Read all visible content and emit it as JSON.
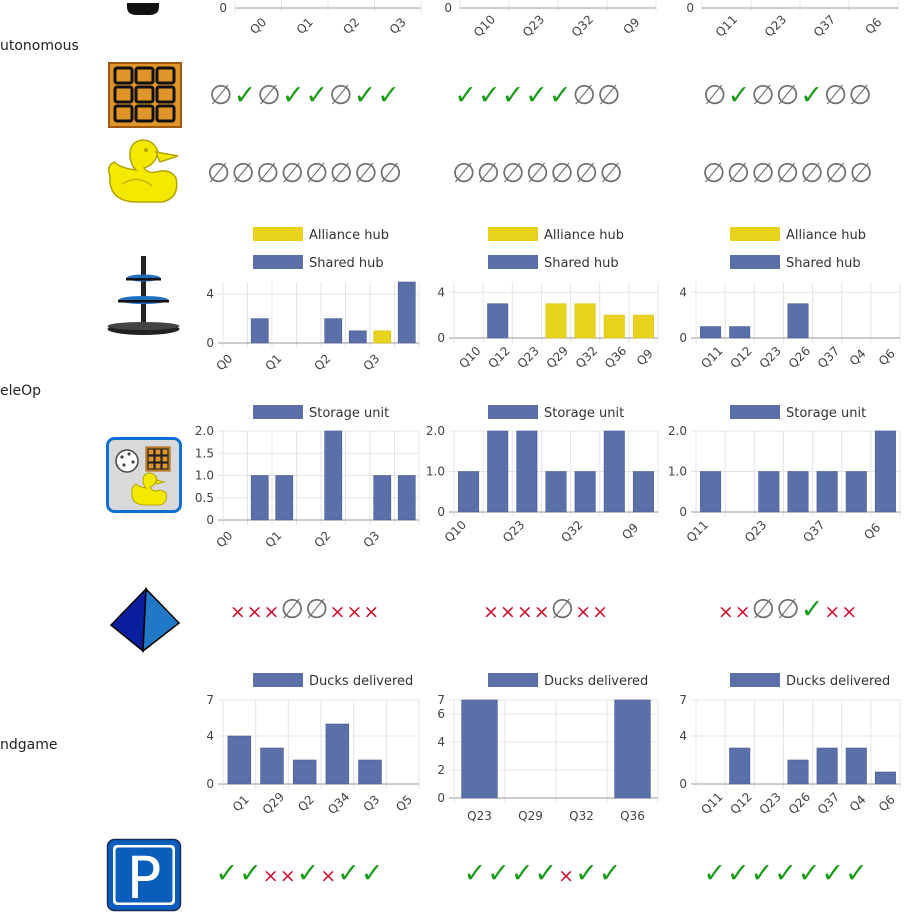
{
  "sections": {
    "autonomous": "utonomous",
    "teleop": "eleOp",
    "endgame": "ndgame"
  },
  "icons": {
    "top_partial": "object-icon",
    "waffle": "waffle-icon",
    "duck": "duck-icon",
    "shipping_hub": "shipping-hub-icon",
    "storage_unit": "storage-unit-icon",
    "pyramid": "capping-element-icon",
    "parking": "parking-icon"
  },
  "colors": {
    "series_blue": "#5b6fa8",
    "alliance_yellow": "#e8d21d",
    "ok_green": "#1a9c1a",
    "fail_red": "#c8102e",
    "null_grey": "#6e6e6e"
  },
  "symbol_rows": {
    "auto_waffle": [
      "∅✓∅✓✓∅✓✓",
      "✓✓✓✓✓∅∅",
      "∅✓∅∅✓∅∅"
    ],
    "auto_duck": [
      "∅∅∅∅∅∅∅∅",
      "∅∅∅∅∅∅∅",
      "∅∅∅∅∅∅∅"
    ],
    "capping": [
      "×××∅∅×××",
      "××××∅××",
      "××∅∅✓××"
    ],
    "parking": [
      "✓✓××✓×✓✓",
      "✓✓✓✓×✓✓",
      "✓✓✓✓✓✓✓"
    ]
  },
  "chart_data": [
    {
      "id": "auto-top-1",
      "type": "bar",
      "xlabel": "",
      "ylabel": "",
      "x_tick_labels": [
        "Q0",
        "Q1",
        "Q2",
        "Q3"
      ],
      "y_tick_labels": [
        "0"
      ]
    },
    {
      "id": "auto-top-2",
      "type": "bar",
      "xlabel": "",
      "ylabel": "",
      "x_tick_labels": [
        "Q10",
        "Q23",
        "Q32",
        "Q9"
      ],
      "y_tick_labels": [
        "0"
      ]
    },
    {
      "id": "auto-top-3",
      "type": "bar",
      "xlabel": "",
      "ylabel": "",
      "x_tick_labels": [
        "Q11",
        "Q23",
        "Q37",
        "Q6"
      ],
      "y_tick_labels": [
        "0"
      ]
    },
    {
      "id": "hub-1",
      "type": "bar",
      "ylim": [
        0,
        5
      ],
      "y_ticks": [
        0,
        4
      ],
      "tick_rot": 45,
      "tick_mode": "sparse",
      "categories": [
        "Q0",
        "",
        "Q1",
        "",
        "Q2",
        "",
        "Q3",
        ""
      ],
      "series": [
        {
          "name": "Alliance hub",
          "color": "#e8d21d",
          "values": [
            0,
            0,
            0,
            0,
            0,
            0,
            1,
            0
          ]
        },
        {
          "name": "Shared hub",
          "color": "#5b6fa8",
          "values": [
            0,
            2,
            0,
            0,
            2,
            1,
            0,
            5
          ]
        }
      ],
      "legend_position": "top"
    },
    {
      "id": "hub-2",
      "type": "bar",
      "ylim": [
        0,
        4.9
      ],
      "y_ticks": [
        0,
        4
      ],
      "tick_rot": 45,
      "categories": [
        "Q10",
        "Q12",
        "Q23",
        "Q29",
        "Q32",
        "Q36",
        "Q9"
      ],
      "series": [
        {
          "name": "Alliance hub",
          "color": "#e8d21d",
          "values": [
            0,
            0,
            0,
            3,
            3,
            2,
            2
          ]
        },
        {
          "name": "Shared hub",
          "color": "#5b6fa8",
          "values": [
            0,
            3,
            0,
            0,
            0,
            0,
            0
          ]
        }
      ],
      "legend_position": "top"
    },
    {
      "id": "hub-3",
      "type": "bar",
      "ylim": [
        0,
        4.9
      ],
      "y_ticks": [
        0,
        4
      ],
      "tick_rot": 45,
      "categories": [
        "Q11",
        "Q12",
        "Q23",
        "Q26",
        "Q37",
        "Q4",
        "Q6"
      ],
      "series": [
        {
          "name": "Alliance hub",
          "color": "#e8d21d",
          "values": [
            0,
            0,
            0,
            0,
            0,
            0,
            0
          ]
        },
        {
          "name": "Shared hub",
          "color": "#5b6fa8",
          "values": [
            1,
            1,
            0,
            3,
            0,
            0,
            0
          ]
        }
      ],
      "legend_position": "top"
    },
    {
      "id": "storage-1",
      "type": "bar",
      "ylim": [
        0,
        2
      ],
      "y_ticks": [
        0,
        0.5,
        1,
        1.5,
        2
      ],
      "y_tick_labels": [
        "0",
        "0.5",
        "1.0",
        "1.5",
        "2.0"
      ],
      "tick_rot": 45,
      "tick_mode": "sparse",
      "categories": [
        "Q0",
        "",
        "Q1",
        "",
        "Q2",
        "",
        "Q3",
        ""
      ],
      "series": [
        {
          "name": "Storage unit",
          "color": "#5b6fa8",
          "values": [
            0,
            1,
            1,
            0,
            2,
            0,
            1,
            1
          ]
        }
      ],
      "legend_position": "top"
    },
    {
      "id": "storage-2",
      "type": "bar",
      "ylim": [
        0,
        2
      ],
      "y_ticks": [
        0,
        1,
        2
      ],
      "y_tick_labels": [
        "0",
        "1.0",
        "2.0"
      ],
      "tick_rot": 45,
      "tick_mode": "sparse",
      "categories": [
        "Q10",
        "",
        "Q23",
        "",
        "Q32",
        "",
        "Q9"
      ],
      "series": [
        {
          "name": "Storage unit",
          "color": "#5b6fa8",
          "values": [
            1,
            2,
            2,
            1,
            1,
            2,
            1
          ]
        }
      ],
      "legend_position": "top"
    },
    {
      "id": "storage-3",
      "type": "bar",
      "ylim": [
        0,
        2
      ],
      "y_ticks": [
        0,
        1,
        2
      ],
      "y_tick_labels": [
        "0",
        "1.0",
        "2.0"
      ],
      "tick_rot": 45,
      "tick_mode": "sparse",
      "categories": [
        "Q11",
        "",
        "Q23",
        "",
        "Q37",
        "",
        "Q6"
      ],
      "series": [
        {
          "name": "Storage unit",
          "color": "#5b6fa8",
          "values": [
            1,
            0,
            1,
            1,
            1,
            1,
            2
          ]
        }
      ],
      "legend_position": "top"
    },
    {
      "id": "ducks-1",
      "type": "bar",
      "ylim": [
        0,
        7
      ],
      "y_ticks": [
        0,
        4,
        7
      ],
      "tick_rot": 45,
      "categories": [
        "Q1",
        "Q29",
        "Q2",
        "Q34",
        "Q3",
        "Q5"
      ],
      "series": [
        {
          "name": "Ducks delivered",
          "color": "#5b6fa8",
          "values": [
            4,
            3,
            2,
            5,
            2,
            0
          ]
        }
      ],
      "legend_position": "top"
    },
    {
      "id": "ducks-2",
      "type": "bar",
      "ylim": [
        0,
        7
      ],
      "y_ticks": [
        0,
        2,
        4,
        6,
        7
      ],
      "tick_rot": 0,
      "categories": [
        "Q23",
        "Q29",
        "Q32",
        "Q36"
      ],
      "series": [
        {
          "name": "Ducks delivered",
          "color": "#5b6fa8",
          "values": [
            7,
            0,
            0,
            7
          ]
        }
      ],
      "legend_position": "top"
    },
    {
      "id": "ducks-3",
      "type": "bar",
      "ylim": [
        0,
        7
      ],
      "y_ticks": [
        0,
        4,
        7
      ],
      "tick_rot": 45,
      "categories": [
        "Q11",
        "Q12",
        "Q23",
        "Q26",
        "Q37",
        "Q4",
        "Q6"
      ],
      "series": [
        {
          "name": "Ducks delivered",
          "color": "#5b6fa8",
          "values": [
            0,
            3,
            0,
            2,
            3,
            3,
            1
          ]
        }
      ],
      "legend_position": "top"
    }
  ]
}
